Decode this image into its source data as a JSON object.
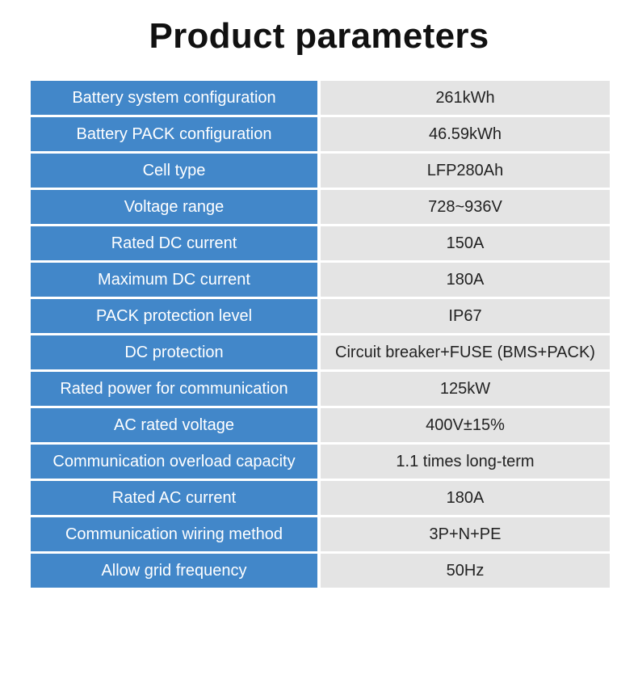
{
  "page": {
    "title": "Product parameters"
  },
  "colors": {
    "label_bg": "#4287c9",
    "value_bg": "#e4e4e4"
  },
  "parameters": [
    {
      "label": "Battery system configuration",
      "value": "261kWh"
    },
    {
      "label": "Battery PACK configuration",
      "value": "46.59kWh"
    },
    {
      "label": "Cell type",
      "value": "LFP280Ah"
    },
    {
      "label": "Voltage range",
      "value": "728~936V"
    },
    {
      "label": "Rated DC current",
      "value": "150A"
    },
    {
      "label": "Maximum DC current",
      "value": "180A"
    },
    {
      "label": "PACK protection level",
      "value": "IP67"
    },
    {
      "label": "DC protection",
      "value": "Circuit breaker+FUSE (BMS+PACK)"
    },
    {
      "label": "Rated power for communication",
      "value": "125kW"
    },
    {
      "label": "AC rated voltage",
      "value": "400V±15%"
    },
    {
      "label": "Communication overload capacity",
      "value": "1.1 times long-term"
    },
    {
      "label": "Rated AC current",
      "value": "180A"
    },
    {
      "label": "Communication wiring method",
      "value": "3P+N+PE"
    },
    {
      "label": "Allow grid frequency",
      "value": "50Hz"
    }
  ]
}
